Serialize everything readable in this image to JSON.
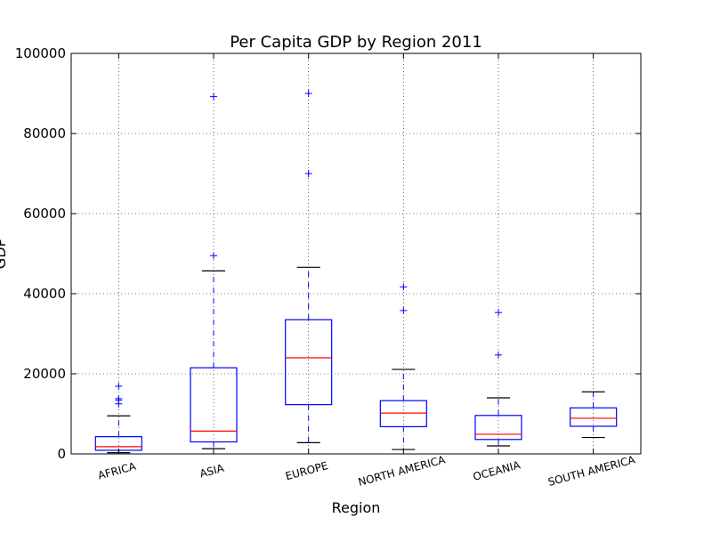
{
  "chart_data": {
    "type": "box",
    "title": "Per Capita GDP by Region 2011",
    "xlabel": "Region",
    "ylabel": "GDP",
    "ylim": [
      0,
      100000
    ],
    "yticks": [
      0,
      20000,
      40000,
      60000,
      80000,
      100000
    ],
    "ytick_labels": [
      "0",
      "20000",
      "40000",
      "60000",
      "80000",
      "100000"
    ],
    "grid": true,
    "colors": {
      "box": "#0000ff",
      "median": "#ff0000",
      "whisker_cap": "#000000",
      "outlier": "#0000ff",
      "grid": "#000000"
    },
    "categories": [
      "AFRICA",
      "ASIA",
      "EUROPE",
      "NORTH AMERICA",
      "OCEANIA",
      "SOUTH AMERICA"
    ],
    "boxes": [
      {
        "category": "AFRICA",
        "whisker_low": 300,
        "q1": 900,
        "median": 1800,
        "q3": 4300,
        "whisker_high": 9500,
        "outliers": [
          12500,
          13400,
          13800,
          16900
        ]
      },
      {
        "category": "ASIA",
        "whisker_low": 1300,
        "q1": 3000,
        "median": 5700,
        "q3": 21500,
        "whisker_high": 45700,
        "outliers": [
          49500,
          89200
        ]
      },
      {
        "category": "EUROPE",
        "whisker_low": 2800,
        "q1": 12300,
        "median": 24000,
        "q3": 33500,
        "whisker_high": 46600,
        "outliers": [
          70000,
          90000
        ]
      },
      {
        "category": "NORTH AMERICA",
        "whisker_low": 1100,
        "q1": 6800,
        "median": 10200,
        "q3": 13300,
        "whisker_high": 21100,
        "outliers": [
          35800,
          41700
        ]
      },
      {
        "category": "OCEANIA",
        "whisker_low": 2000,
        "q1": 3600,
        "median": 4900,
        "q3": 9600,
        "whisker_high": 14000,
        "outliers": [
          24700,
          35300
        ]
      },
      {
        "category": "SOUTH AMERICA",
        "whisker_low": 4100,
        "q1": 6900,
        "median": 8900,
        "q3": 11500,
        "whisker_high": 15500,
        "outliers": []
      }
    ]
  }
}
